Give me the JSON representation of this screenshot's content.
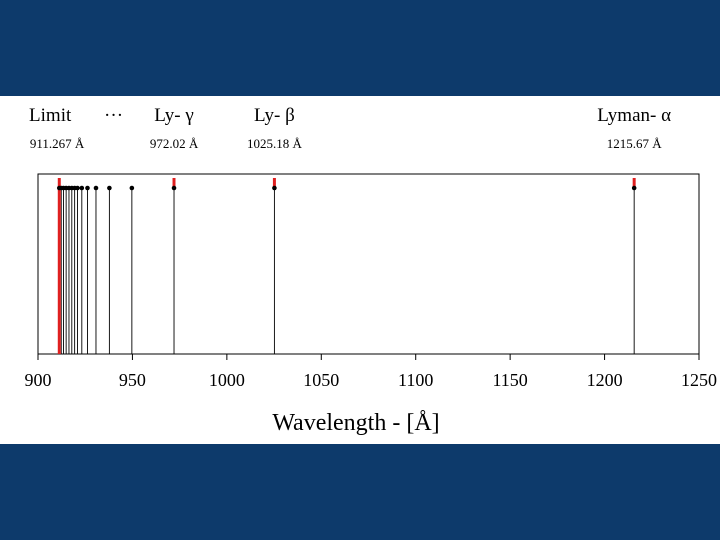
{
  "colors": {
    "background": "#0d3a6b",
    "panel": "#ffffff",
    "limit_marker": "#e02020",
    "line": "#000000"
  },
  "chart_data": {
    "type": "scatter",
    "description_free": true,
    "xlabel": "Wavelength - [Å]",
    "xlim": [
      900,
      1250
    ],
    "xticks": [
      900,
      950,
      1000,
      1050,
      1100,
      1150,
      1200,
      1250
    ],
    "grid": false,
    "series": [
      {
        "lines_x": [
          911.267,
          912.3,
          913.5,
          914.9,
          916.4,
          917.9,
          919.4,
          920.9,
          923.2,
          926.2,
          930.7,
          937.8,
          949.7,
          972.02,
          1025.18,
          1215.67
        ]
      }
    ],
    "highlighted_x": [
      911.267,
      972.02,
      1025.18,
      1215.67
    ],
    "annotations": [
      {
        "name_text": "Limit",
        "value_text": "911.267 Å",
        "x": 911.267
      },
      {
        "name_text": "···",
        "value_text": "",
        "x": 940
      },
      {
        "name_text": "Ly- γ",
        "value_text": "972.02 Å",
        "x": 972.02
      },
      {
        "name_text": "Ly- β",
        "value_text": "1025.18 Å",
        "x": 1025.18
      },
      {
        "name_text": "Lyman- α",
        "value_text": "1215.67 Å",
        "x": 1215.67
      }
    ]
  }
}
